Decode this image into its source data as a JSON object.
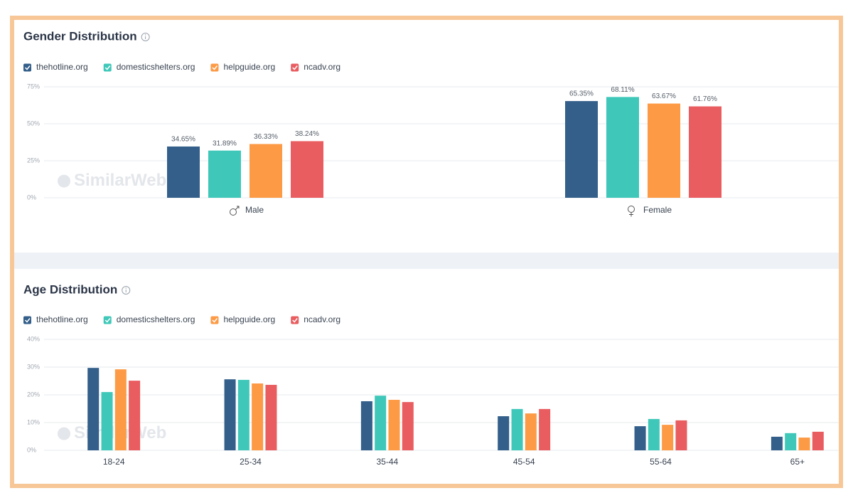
{
  "chart_data": [
    {
      "type": "bar",
      "title": "Gender Distribution",
      "watermark": "SimilarWeb",
      "categories": [
        "Male",
        "Female"
      ],
      "series": [
        {
          "name": "thehotline.org",
          "color": "#335f8a",
          "values": [
            34.65,
            65.35
          ],
          "value_labels": [
            "34.65%",
            "65.35%"
          ]
        },
        {
          "name": "domesticshelters.org",
          "color": "#3fc8b9",
          "values": [
            31.89,
            68.11
          ],
          "value_labels": [
            "31.89%",
            "68.11%"
          ]
        },
        {
          "name": "helpguide.org",
          "color": "#fd9a45",
          "values": [
            36.33,
            63.67
          ],
          "value_labels": [
            "36.33%",
            "63.67%"
          ]
        },
        {
          "name": "ncadv.org",
          "color": "#e95c5f",
          "values": [
            38.24,
            61.76
          ],
          "value_labels": [
            "38.24%",
            "61.76%"
          ]
        }
      ],
      "ylim": [
        0,
        75
      ],
      "yticks": [
        {
          "value": 0,
          "label": "0%"
        },
        {
          "value": 25,
          "label": "25%"
        },
        {
          "value": 50,
          "label": "50%"
        },
        {
          "value": 75,
          "label": "75%"
        }
      ],
      "grid": true
    },
    {
      "type": "bar",
      "title": "Age Distribution",
      "watermark": "SimilarWeb",
      "categories": [
        "18-24",
        "25-34",
        "35-44",
        "45-54",
        "55-64",
        "65+"
      ],
      "series": [
        {
          "name": "thehotline.org",
          "color": "#335f8a",
          "values": [
            29.7,
            25.6,
            17.7,
            12.3,
            8.7,
            4.9
          ]
        },
        {
          "name": "domesticshelters.org",
          "color": "#3fc8b9",
          "values": [
            21.0,
            25.4,
            19.7,
            14.9,
            11.3,
            6.2
          ]
        },
        {
          "name": "helpguide.org",
          "color": "#fd9a45",
          "values": [
            29.2,
            24.1,
            18.2,
            13.3,
            9.2,
            4.6
          ]
        },
        {
          "name": "ncadv.org",
          "color": "#e95c5f",
          "values": [
            25.1,
            23.6,
            17.4,
            14.9,
            10.8,
            6.7
          ]
        }
      ],
      "ylim": [
        0,
        40
      ],
      "yticks": [
        {
          "value": 0,
          "label": "0%"
        },
        {
          "value": 10,
          "label": "10%"
        },
        {
          "value": 20,
          "label": "20%"
        },
        {
          "value": 30,
          "label": "30%"
        },
        {
          "value": 40,
          "label": "40%"
        }
      ],
      "grid": true
    }
  ]
}
